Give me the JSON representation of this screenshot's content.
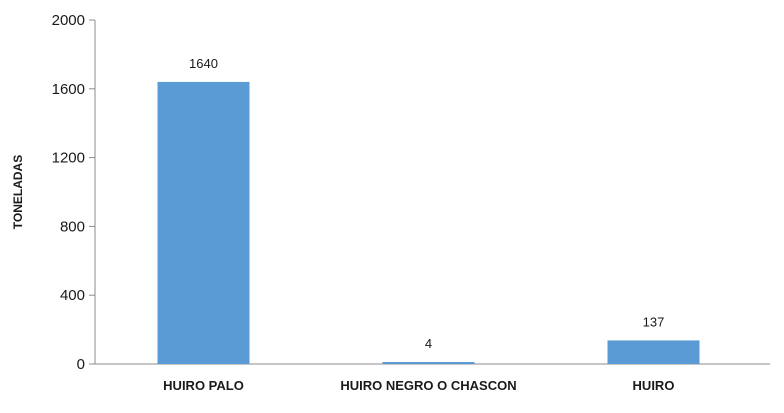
{
  "chart_data": {
    "type": "bar",
    "categories": [
      "HUIRO PALO",
      "HUIRO NEGRO O CHASCON",
      "HUIRO"
    ],
    "values": [
      1640,
      4,
      137
    ],
    "data_labels": [
      "1640",
      "4",
      "137"
    ],
    "title": "",
    "xlabel": "",
    "ylabel": "TONELADAS",
    "ylim": [
      0,
      2000
    ],
    "yticks": [
      0,
      400,
      800,
      1200,
      1600,
      2000
    ],
    "ytick_labels": [
      "0",
      "400",
      "800",
      "1200",
      "1600",
      "2000"
    ],
    "grid": false,
    "legend": "none",
    "bar_color": "#5b9bd5",
    "axis_color": "#8c8c8c"
  }
}
